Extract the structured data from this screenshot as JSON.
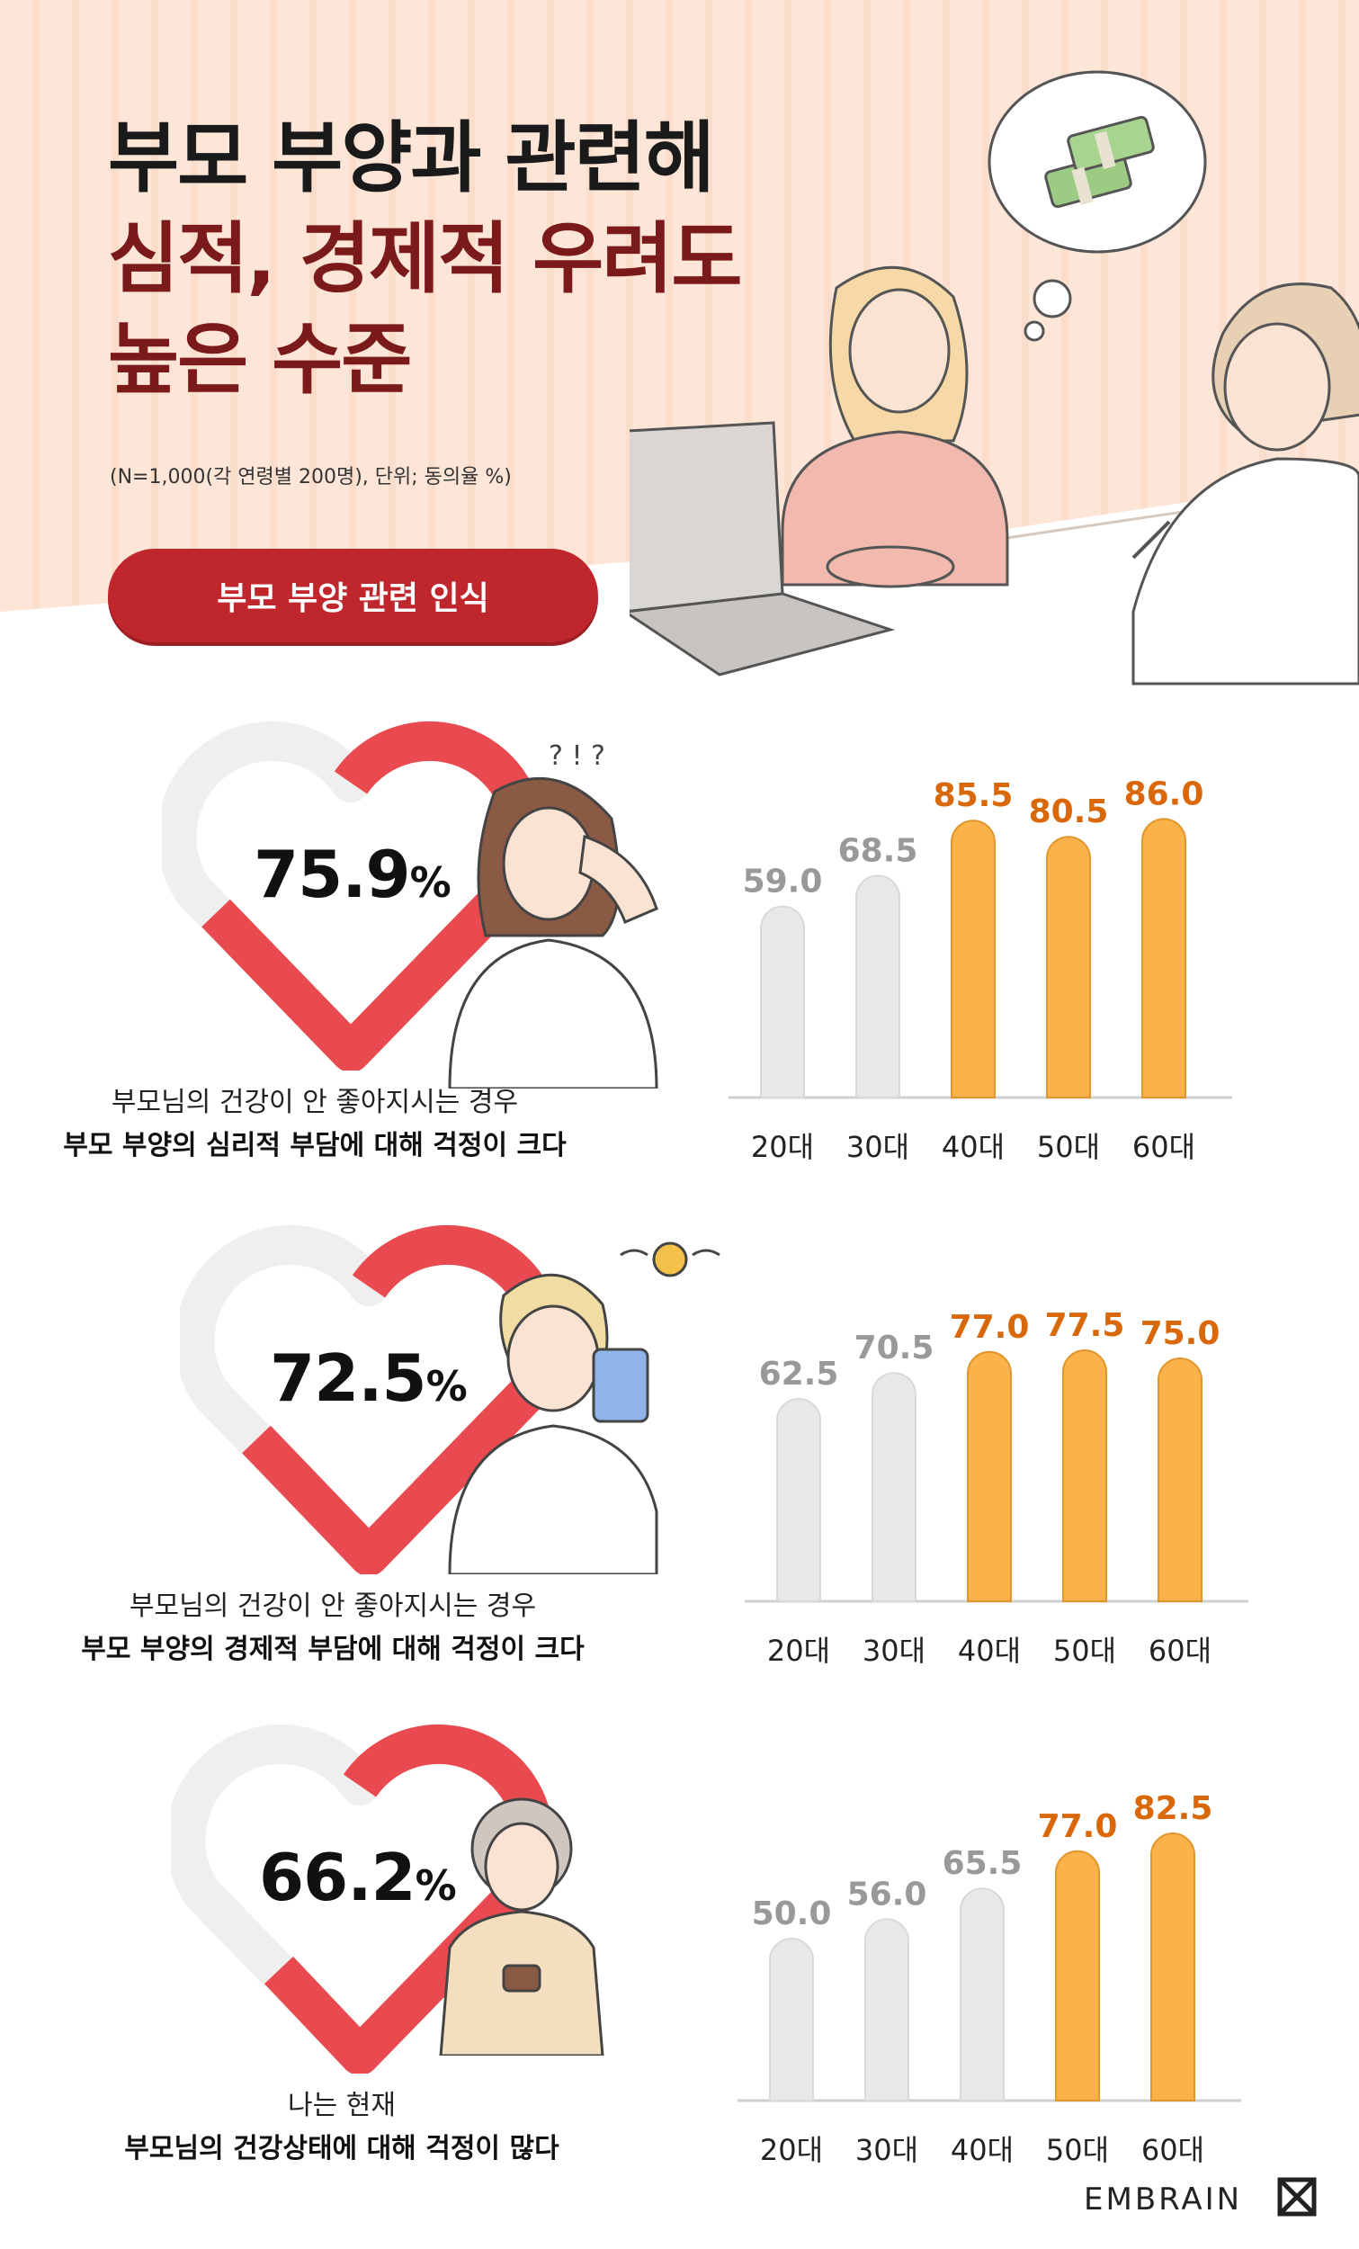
{
  "header": {
    "title_line1": "부모 부양과 관련해",
    "title_line2": "심적, 경제적 우려도",
    "title_line3": "높은 수준",
    "note": "(N=1,000(각 연령별 200명), 단위; 동의율 %)",
    "section_label": "부모 부양 관련 인식"
  },
  "colors": {
    "accent_red": "#c0272d",
    "heart_red": "#e94a4f",
    "highlight_orange": "#fbb24a",
    "highlight_text": "#d9680b",
    "gray_bar": "#e8e8e8",
    "gray_text": "#999999"
  },
  "sections": [
    {
      "percent": "75.9",
      "percent_unit": "%",
      "caption_line1": "부모님의 건강이 안 좋아지시는 경우",
      "caption_line2": "부모 부양의 심리적 부담에 대해 걱정이 크다"
    },
    {
      "percent": "72.5",
      "percent_unit": "%",
      "caption_line1": "부모님의 건강이 안 좋아지시는 경우",
      "caption_line2": "부모 부양의 경제적 부담에 대해 걱정이 크다"
    },
    {
      "percent": "66.2",
      "percent_unit": "%",
      "caption_line1": "나는 현재",
      "caption_line2": "부모님의 건강상태에 대해 걱정이 많다"
    }
  ],
  "chart_data": [
    {
      "type": "bar",
      "categories": [
        "20대",
        "30대",
        "40대",
        "50대",
        "60대"
      ],
      "values": [
        59.0,
        68.5,
        85.5,
        80.5,
        86.0
      ],
      "value_labels": [
        "59.0",
        "68.5",
        "85.5",
        "80.5",
        "86.0"
      ],
      "highlighted": [
        false,
        false,
        true,
        true,
        true
      ],
      "ylim": [
        0,
        100
      ]
    },
    {
      "type": "bar",
      "categories": [
        "20대",
        "30대",
        "40대",
        "50대",
        "60대"
      ],
      "values": [
        62.5,
        70.5,
        77.0,
        77.5,
        75.0
      ],
      "value_labels": [
        "62.5",
        "70.5",
        "77.0",
        "77.5",
        "75.0"
      ],
      "highlighted": [
        false,
        false,
        true,
        true,
        true
      ],
      "ylim": [
        0,
        100
      ]
    },
    {
      "type": "bar",
      "categories": [
        "20대",
        "30대",
        "40대",
        "50대",
        "60대"
      ],
      "values": [
        50.0,
        56.0,
        65.5,
        77.0,
        82.5
      ],
      "value_labels": [
        "50.0",
        "56.0",
        "65.5",
        "77.0",
        "82.5"
      ],
      "highlighted": [
        false,
        false,
        false,
        true,
        true
      ],
      "ylim": [
        0,
        100
      ]
    }
  ],
  "footer": {
    "brand": "EMBRAIN"
  }
}
